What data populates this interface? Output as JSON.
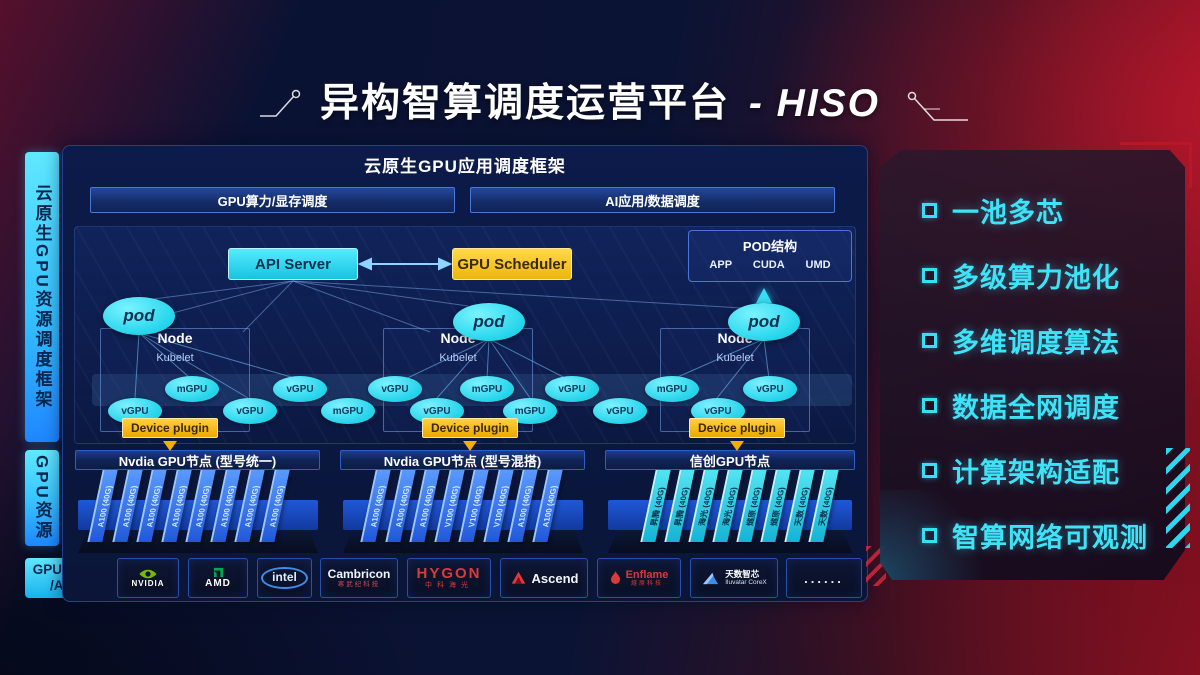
{
  "title": {
    "cn": "异构智算调度运营平台",
    "en": "- HISO"
  },
  "left_rails": {
    "rail1": "云原生GPU资源调度框架",
    "rail2": "GPU资源",
    "chip_line1": "GPU/FPGA",
    "chip_line2": "/ASIC"
  },
  "main": {
    "framework_title": "云原生GPU应用调度框架",
    "bar_left": "GPU算力/显存调度",
    "bar_right": "AI应用/数据调度",
    "api_server": "API Server",
    "gpu_scheduler": "GPU Scheduler",
    "pod_box": {
      "title": "POD结构",
      "items": [
        "APP",
        "CUDA",
        "UMD"
      ]
    },
    "node_label": "Node",
    "kubelet_label": "Kubelet",
    "pod_label": "pod",
    "device_plugin": "Device plugin",
    "gpu_ellipses": {
      "top_row": [
        "mGPU",
        "vGPU",
        "vGPU",
        "mGPU",
        "vGPU",
        "mGPU",
        "vGPU"
      ],
      "bottom_row": [
        "vGPU",
        "vGPU",
        "mGPU",
        "vGPU",
        "mGPU",
        "vGPU",
        "vGPU"
      ]
    },
    "group_headers": [
      "Nvdia GPU节点 (型号统一)",
      "Nvdia GPU节点 (型号混搭)",
      "信创GPU节点"
    ],
    "stacks": [
      {
        "theme": "blue",
        "cards": [
          "A100 (40G)",
          "A100 (40G)",
          "A100 (40G)",
          "A100 (40G)",
          "A100 (40G)",
          "A100 (40G)",
          "A100 (40G)",
          "A100 (40G)"
        ]
      },
      {
        "theme": "blue",
        "cards": [
          "A100 (40G)",
          "A100 (40G)",
          "A100 (40G)",
          "V100 (40G)",
          "V100 (40G)",
          "V100 (40G)",
          "A100 (40G)",
          "A100 (40G)"
        ]
      },
      {
        "theme": "cyan",
        "cards": [
          "昇腾 (40G)",
          "昇腾 (40G)",
          "海光 (40G)",
          "海光 (40G)",
          "燧原 (40G)",
          "燧原 (40G)",
          "天数 (40G)",
          "天数 (40G)"
        ]
      }
    ],
    "vendors": [
      {
        "id": "nvidia",
        "text": "NVIDIA"
      },
      {
        "id": "amd",
        "text": "AMD"
      },
      {
        "id": "intel",
        "text": "intel"
      },
      {
        "id": "cambricon",
        "text": "Cambricon",
        "sub": "寒武纪科技"
      },
      {
        "id": "hygon",
        "text": "HYGON",
        "sub": "中科海光"
      },
      {
        "id": "ascend",
        "text": "Ascend"
      },
      {
        "id": "enflame",
        "text": "Enflame",
        "sub": "燧原科技"
      },
      {
        "id": "iluvatar",
        "text": "天数智芯",
        "sub": "Iluvatar CoreX"
      },
      {
        "id": "more",
        "text": "......"
      }
    ]
  },
  "right_panel": {
    "features": [
      "一池多芯",
      "多级算力池化",
      "多维调度算法",
      "数据全网调度",
      "计算架构适配",
      "智算网络可观测"
    ]
  },
  "colors": {
    "cyan": "#35e0f5",
    "gold": "#f0b000",
    "panel_navy": "#0b1a46",
    "card_blue": "#2e6de8",
    "accent_red": "#b01525"
  }
}
